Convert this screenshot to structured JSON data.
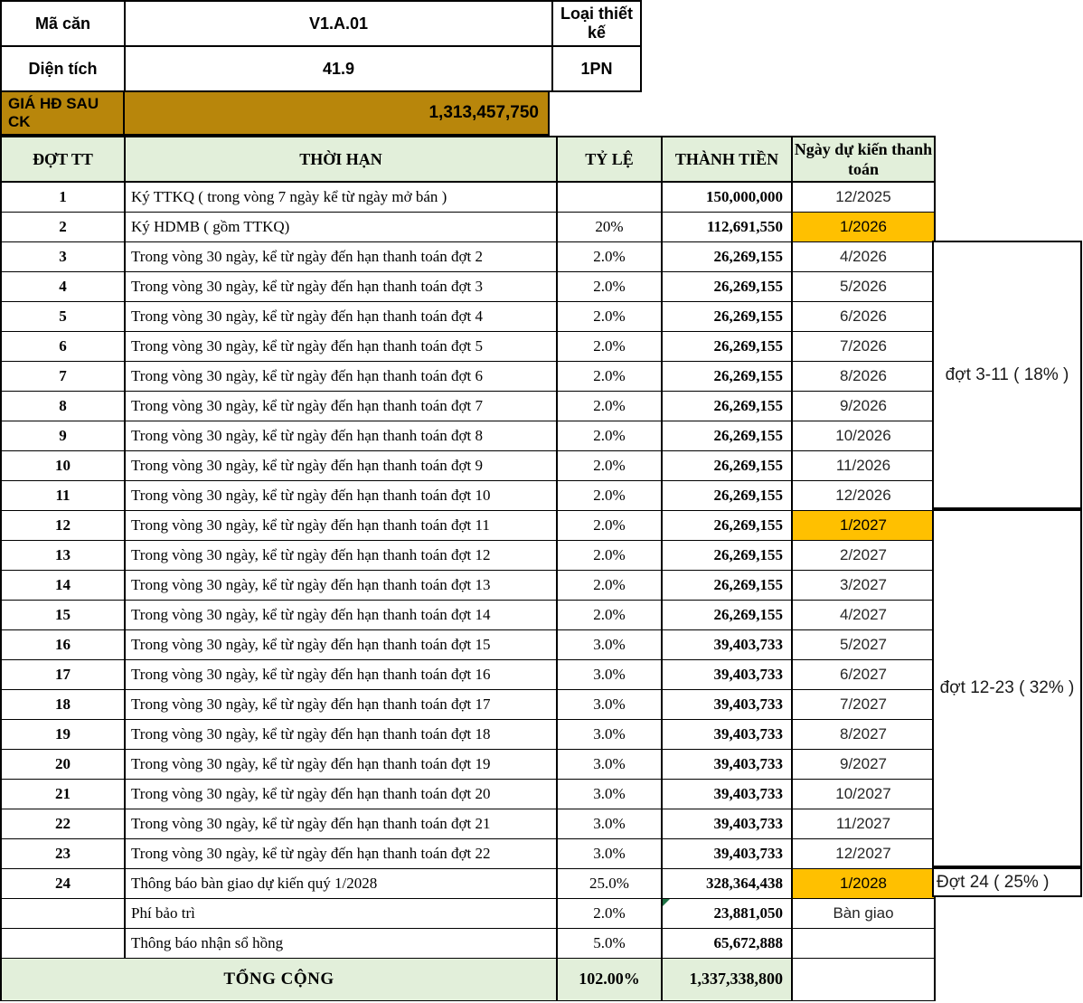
{
  "colors": {
    "gold": "#B8860B",
    "header_green": "#E2EFDA",
    "highlight_orange": "#FFC000",
    "comment_green": "#1E7145"
  },
  "unit_info": {
    "code_label": "Mã căn",
    "code_value": "V1.A.01",
    "design_label": "Loại thiết kế",
    "design_value": "1PN",
    "area_label": "Diện tích",
    "area_value": "41.9"
  },
  "price": {
    "label": "GIÁ HĐ SAU CK",
    "value": "1,313,457,750"
  },
  "table": {
    "headers": [
      "ĐỢT TT",
      "THỜI HẠN",
      "TỶ LỆ",
      "THÀNH TIỀN",
      "Ngày dự kiến thanh toán"
    ],
    "rows": [
      {
        "stt": "1",
        "term": "Ký  TTKQ ( trong vòng 7 ngày kể từ ngày mở bán )",
        "rate": "",
        "amount": "150,000,000",
        "date": "12/2025"
      },
      {
        "stt": "2",
        "term": "Ký  HDMB ( gồm TTKQ)",
        "rate": "20%",
        "amount": "112,691,550",
        "date": "1/2026",
        "date_highlight": true
      },
      {
        "stt": "3",
        "term": "Trong vòng 30 ngày, kể từ ngày đến hạn thanh toán đợt 2",
        "rate": "2.0%",
        "amount": "26,269,155",
        "date": "4/2026"
      },
      {
        "stt": "4",
        "term": "Trong vòng 30 ngày, kể từ ngày đến hạn thanh toán đợt 3",
        "rate": "2.0%",
        "amount": "26,269,155",
        "date": "5/2026"
      },
      {
        "stt": "5",
        "term": "Trong vòng 30 ngày, kể từ ngày đến hạn thanh toán đợt 4",
        "rate": "2.0%",
        "amount": "26,269,155",
        "date": "6/2026"
      },
      {
        "stt": "6",
        "term": "Trong vòng 30 ngày, kể từ ngày đến hạn thanh toán đợt 5",
        "rate": "2.0%",
        "amount": "26,269,155",
        "date": "7/2026"
      },
      {
        "stt": "7",
        "term": "Trong vòng 30 ngày, kể từ ngày đến hạn thanh toán đợt 6",
        "rate": "2.0%",
        "amount": "26,269,155",
        "date": "8/2026"
      },
      {
        "stt": "8",
        "term": "Trong vòng 30 ngày, kể từ ngày đến hạn thanh toán đợt 7",
        "rate": "2.0%",
        "amount": "26,269,155",
        "date": "9/2026"
      },
      {
        "stt": "9",
        "term": "Trong vòng 30 ngày, kể từ ngày đến hạn thanh toán đợt 8",
        "rate": "2.0%",
        "amount": "26,269,155",
        "date": "10/2026"
      },
      {
        "stt": "10",
        "term": "Trong vòng 30 ngày, kể từ ngày đến hạn thanh toán đợt 9",
        "rate": "2.0%",
        "amount": "26,269,155",
        "date": "11/2026"
      },
      {
        "stt": "11",
        "term": "Trong vòng 30 ngày, kể từ ngày đến hạn thanh toán đợt 10",
        "rate": "2.0%",
        "amount": "26,269,155",
        "date": "12/2026"
      },
      {
        "stt": "12",
        "term": "Trong vòng 30 ngày, kể từ ngày đến hạn thanh toán đợt 11",
        "rate": "2.0%",
        "amount": "26,269,155",
        "date": "1/2027",
        "date_highlight": true
      },
      {
        "stt": "13",
        "term": "Trong vòng 30 ngày, kể từ ngày đến hạn thanh toán đợt 12",
        "rate": "2.0%",
        "amount": "26,269,155",
        "date": "2/2027"
      },
      {
        "stt": "14",
        "term": "Trong vòng 30 ngày, kể từ ngày đến hạn thanh toán đợt 13",
        "rate": "2.0%",
        "amount": "26,269,155",
        "date": "3/2027"
      },
      {
        "stt": "15",
        "term": "Trong vòng 30 ngày, kể từ ngày đến hạn thanh toán đợt 14",
        "rate": "2.0%",
        "amount": "26,269,155",
        "date": "4/2027"
      },
      {
        "stt": "16",
        "term": "Trong vòng 30 ngày, kể từ ngày đến hạn thanh toán đợt 15",
        "rate": "3.0%",
        "amount": "39,403,733",
        "date": "5/2027"
      },
      {
        "stt": "17",
        "term": "Trong vòng 30 ngày, kể từ ngày đến hạn thanh toán đợt 16",
        "rate": "3.0%",
        "amount": "39,403,733",
        "date": "6/2027"
      },
      {
        "stt": "18",
        "term": "Trong vòng 30 ngày, kể từ ngày đến hạn thanh toán đợt 17",
        "rate": "3.0%",
        "amount": "39,403,733",
        "date": "7/2027"
      },
      {
        "stt": "19",
        "term": "Trong vòng 30 ngày, kể từ ngày đến hạn thanh toán đợt 18",
        "rate": "3.0%",
        "amount": "39,403,733",
        "date": "8/2027"
      },
      {
        "stt": "20",
        "term": "Trong vòng 30 ngày, kể từ ngày đến hạn thanh toán đợt 19",
        "rate": "3.0%",
        "amount": "39,403,733",
        "date": "9/2027"
      },
      {
        "stt": "21",
        "term": "Trong vòng 30 ngày, kể từ ngày đến hạn thanh toán đợt 20",
        "rate": "3.0%",
        "amount": "39,403,733",
        "date": "10/2027"
      },
      {
        "stt": "22",
        "term": "Trong vòng 30 ngày, kể từ ngày đến hạn thanh toán đợt 21",
        "rate": "3.0%",
        "amount": "39,403,733",
        "date": "11/2027"
      },
      {
        "stt": "23",
        "term": "Trong vòng 30 ngày, kể từ ngày đến hạn thanh toán đợt 22",
        "rate": "3.0%",
        "amount": "39,403,733",
        "date": "12/2027"
      },
      {
        "stt": "24",
        "term": "Thông báo bàn giao dự kiến quý 1/2028",
        "rate": "25.0%",
        "amount": "328,364,438",
        "date": "1/2028",
        "date_highlight": true
      },
      {
        "stt": "",
        "term": "Phí bảo trì",
        "rate": "2.0%",
        "amount": "23,881,050",
        "date": "Bàn giao",
        "comment_marker": true
      },
      {
        "stt": "",
        "term": "Thông báo nhận sổ hồng",
        "rate": "5.0%",
        "amount": "65,672,888",
        "date": ""
      }
    ],
    "total": {
      "label": "TỔNG CỘNG",
      "rate": "102.00%",
      "amount": "1,337,338,800",
      "date": ""
    }
  },
  "annotations": [
    {
      "label": "đợt 3-11 ( 18% )",
      "from_row": 3,
      "to_row": 11
    },
    {
      "label": "đợt 12-23 ( 32% )",
      "from_row": 12,
      "to_row": 23
    },
    {
      "label": "Đợt 24 ( 25% )",
      "from_row": 24,
      "to_row": 24
    }
  ]
}
